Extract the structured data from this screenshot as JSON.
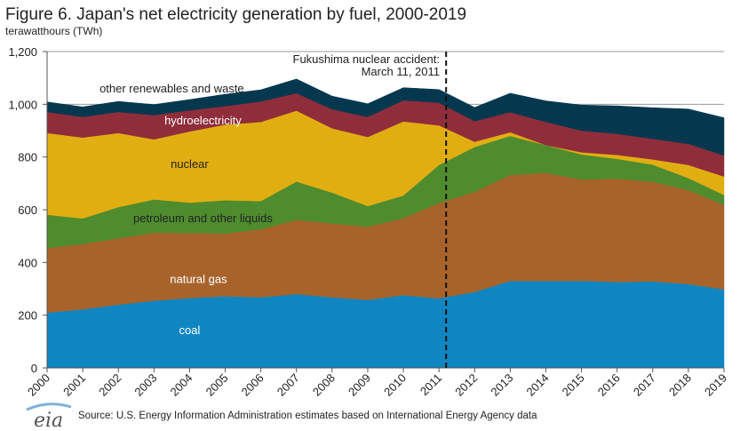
{
  "header": {
    "title": "Figure 6. Japan's net electricity generation by fuel, 2000-2019",
    "unit_label": "terawatthours (TWh)"
  },
  "footer": {
    "logo_text": "eia",
    "source": "Source: U.S. Energy Information Administration estimates based on International Energy Agency data"
  },
  "annotation": {
    "line1": "Fukushima nuclear accident:",
    "line2": "March 11, 2011"
  },
  "chart_data": {
    "type": "area",
    "stacked": true,
    "title": "Figure 6. Japan's net electricity generation by fuel, 2000-2019",
    "ylabel": "terawatthours (TWh)",
    "ylim": [
      0,
      1200
    ],
    "yticks": [
      0,
      200,
      400,
      600,
      800,
      1000,
      1200
    ],
    "ytick_labels": [
      "0",
      "200",
      "400",
      "600",
      "800",
      "1,000",
      "1,200"
    ],
    "grid": true,
    "x": [
      "2000",
      "2001",
      "2002",
      "2003",
      "2004",
      "2005",
      "2006",
      "2007",
      "2008",
      "2009",
      "2010",
      "2011",
      "2012",
      "2013",
      "2014",
      "2015",
      "2016",
      "2017",
      "2018",
      "2019"
    ],
    "series": [
      {
        "name": "coal",
        "label": "coal",
        "color": "#0f86c1",
        "label_color": "#ffffff",
        "values": [
          210,
          222,
          240,
          255,
          265,
          272,
          268,
          280,
          268,
          258,
          276,
          264,
          288,
          330,
          330,
          330,
          326,
          328,
          318,
          298
        ]
      },
      {
        "name": "natural gas",
        "label": "natural gas",
        "color": "#a8632b",
        "label_color": "#ffffff",
        "values": [
          245,
          248,
          252,
          258,
          247,
          238,
          258,
          282,
          280,
          278,
          292,
          362,
          380,
          402,
          410,
          385,
          392,
          378,
          357,
          320
        ]
      },
      {
        "name": "petroleum and other liquids",
        "label": "petroleum and other liquids",
        "color": "#4e8c2e",
        "label_color": "#222222",
        "values": [
          126,
          97,
          118,
          126,
          115,
          126,
          107,
          145,
          117,
          78,
          86,
          144,
          170,
          148,
          105,
          95,
          75,
          65,
          45,
          38
        ]
      },
      {
        "name": "nuclear",
        "label": "nuclear",
        "color": "#e1ae12",
        "label_color": "#222222",
        "values": [
          310,
          307,
          281,
          228,
          270,
          287,
          300,
          269,
          244,
          262,
          281,
          150,
          20,
          14,
          0,
          8,
          15,
          20,
          50,
          70
        ]
      },
      {
        "name": "hydroelectricity",
        "label": "hydroelectricity",
        "color": "#902d3b",
        "label_color": "#ffffff",
        "values": [
          80,
          78,
          80,
          92,
          80,
          70,
          78,
          66,
          72,
          76,
          80,
          86,
          78,
          76,
          88,
          82,
          80,
          78,
          80,
          80
        ]
      },
      {
        "name": "other renewables and waste",
        "label": "other renewables and waste",
        "color": "#05384e",
        "label_color": "#222222",
        "values": [
          38,
          38,
          40,
          40,
          41,
          45,
          44,
          54,
          50,
          50,
          48,
          50,
          52,
          72,
          80,
          97,
          106,
          118,
          132,
          143
        ]
      }
    ],
    "annotations": [
      {
        "type": "vline",
        "x": 2011.2,
        "text": "Fukushima nuclear accident: March 11, 2011"
      }
    ]
  }
}
